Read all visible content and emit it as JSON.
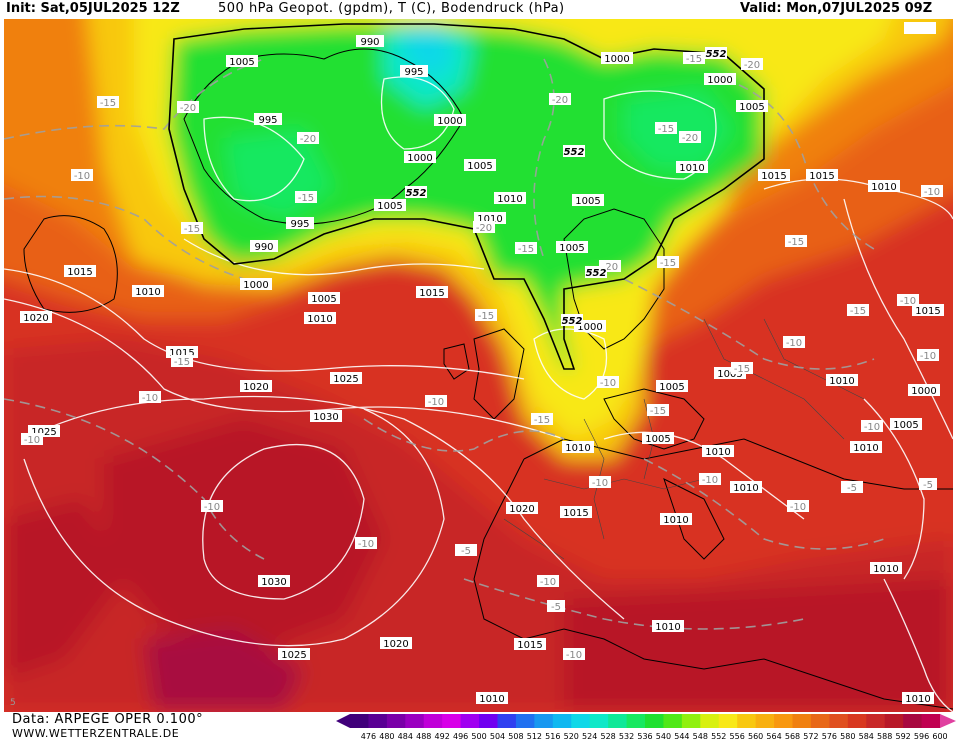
{
  "header": {
    "init": "Init: Sat,05JUL2025 12Z",
    "title": "500 hPa Geopot. (gpdm), T (C), Bodendruck (hPa)",
    "valid": "Valid: Mon,07JUL2025 09Z"
  },
  "footer": {
    "data_source": "Data: ARPEGE OPER 0.100°",
    "website": "WWW.WETTERZENTRALE.DE"
  },
  "colors": {
    "deep_low": "#00d8a0",
    "low": "#10e040",
    "low_mid": "#30e818",
    "yellow": "#f8e818",
    "orange": "#f8a010",
    "dark_orange": "#e86018",
    "red": "#d83020",
    "dark_red": "#b81828",
    "darkest": "#a80840"
  },
  "scale": {
    "labels": [
      "476",
      "480",
      "484",
      "488",
      "492",
      "496",
      "500",
      "504",
      "508",
      "512",
      "516",
      "520",
      "524",
      "528",
      "532",
      "536",
      "540",
      "544",
      "548",
      "552",
      "556",
      "560",
      "564",
      "568",
      "572",
      "576",
      "580",
      "584",
      "588",
      "592",
      "596",
      "600"
    ],
    "colors": [
      "#40007a",
      "#5a0094",
      "#7a00a8",
      "#9a00c0",
      "#c000d8",
      "#d800e8",
      "#a000f0",
      "#7000f0",
      "#3040f0",
      "#2070f0",
      "#1898f0",
      "#10b8f0",
      "#10d8e8",
      "#10e8c8",
      "#10e898",
      "#18e860",
      "#20e030",
      "#50e818",
      "#90f010",
      "#d8f010",
      "#f8e818",
      "#f8c810",
      "#f8b010",
      "#f89810",
      "#f08010",
      "#e86818",
      "#e05020",
      "#d83820",
      "#c82828",
      "#b81828",
      "#a80840",
      "#c00050"
    ]
  },
  "pressure_labels": [
    {
      "text": "990"
    },
    {
      "text": "995"
    },
    {
      "text": "1005"
    },
    {
      "text": "1000"
    },
    {
      "text": "995"
    },
    {
      "text": "1000"
    },
    {
      "text": "1005"
    },
    {
      "text": "1000"
    },
    {
      "text": "1000"
    },
    {
      "text": "1005"
    },
    {
      "text": "1010"
    },
    {
      "text": "1005"
    },
    {
      "text": "1010"
    },
    {
      "text": "1005"
    },
    {
      "text": "990"
    },
    {
      "text": "995"
    },
    {
      "text": "1000"
    },
    {
      "text": "1005"
    },
    {
      "text": "1010"
    },
    {
      "text": "1015"
    },
    {
      "text": "1015"
    },
    {
      "text": "1010"
    },
    {
      "text": "1020"
    },
    {
      "text": "1015"
    },
    {
      "text": "1020"
    },
    {
      "text": "1025"
    },
    {
      "text": "1030"
    },
    {
      "text": "1025"
    },
    {
      "text": "1030"
    },
    {
      "text": "1025"
    },
    {
      "text": "1020"
    },
    {
      "text": "1015"
    },
    {
      "text": "1010"
    },
    {
      "text": "1000"
    },
    {
      "text": "1005"
    },
    {
      "text": "1005"
    },
    {
      "text": "1010"
    },
    {
      "text": "1010"
    },
    {
      "text": "1005"
    },
    {
      "text": "1010"
    },
    {
      "text": "1010"
    },
    {
      "text": "1010"
    },
    {
      "text": "1010"
    },
    {
      "text": "1015"
    },
    {
      "text": "1010"
    },
    {
      "text": "1010"
    },
    {
      "text": "1015"
    },
    {
      "text": "1000"
    },
    {
      "text": "1005"
    },
    {
      "text": "1015"
    },
    {
      "text": "1010"
    },
    {
      "text": "1010"
    },
    {
      "text": "1010"
    },
    {
      "text": "1020"
    },
    {
      "text": "1015"
    },
    {
      "text": "1005"
    }
  ],
  "temp_labels": [
    {
      "text": "-15"
    },
    {
      "text": "-20"
    },
    {
      "text": "-10"
    },
    {
      "text": "-15"
    },
    {
      "text": "-20"
    },
    {
      "text": "-15"
    },
    {
      "text": "-15"
    },
    {
      "text": "-20"
    },
    {
      "text": "-20"
    },
    {
      "text": "-15"
    },
    {
      "text": "-20"
    },
    {
      "text": "-20"
    },
    {
      "text": "-15"
    },
    {
      "text": "-15"
    },
    {
      "text": "-10"
    },
    {
      "text": "-15"
    },
    {
      "text": "-15"
    },
    {
      "text": "-10"
    },
    {
      "text": "-10"
    },
    {
      "text": "-10"
    },
    {
      "text": "-10"
    },
    {
      "text": "-15"
    },
    {
      "text": "-15"
    },
    {
      "text": "-20"
    },
    {
      "text": "-15"
    },
    {
      "text": "-10"
    },
    {
      "text": "-10"
    },
    {
      "text": "-10"
    },
    {
      "text": "-10"
    },
    {
      "text": "-10"
    },
    {
      "text": "-10"
    },
    {
      "text": "-5"
    },
    {
      "text": "-5"
    },
    {
      "text": "-10"
    },
    {
      "text": "-10"
    },
    {
      "text": "-15"
    },
    {
      "text": "-10"
    },
    {
      "text": "-10"
    },
    {
      "text": "-15"
    },
    {
      "text": "-5"
    },
    {
      "text": "-10"
    },
    {
      "text": "-5"
    }
  ],
  "geo_labels": [
    {
      "text": "552"
    },
    {
      "text": "552"
    },
    {
      "text": "552"
    },
    {
      "text": "552"
    },
    {
      "text": "552"
    }
  ],
  "corner_marks": [
    {
      "text": "5"
    }
  ]
}
